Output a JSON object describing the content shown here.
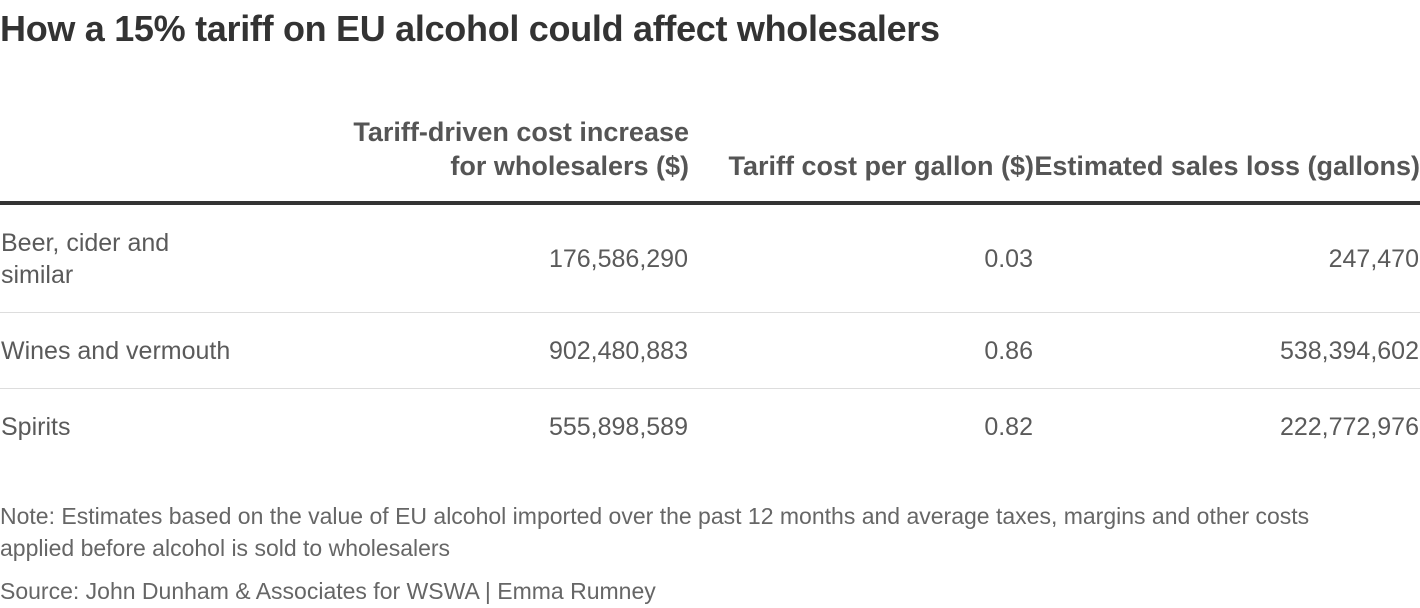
{
  "chart_data": {
    "type": "table",
    "title": "How a 15% tariff on EU alcohol could affect wholesalers",
    "columns": [
      "",
      "Tariff-driven cost increase for wholesalers ($)",
      "Tariff cost per gallon ($)",
      "Estimated sales loss (gallons)"
    ],
    "rows": [
      {
        "category": "Beer, cider and similar",
        "cost_increase": "176,586,290",
        "cost_per_gallon": "0.03",
        "sales_loss": "247,470"
      },
      {
        "category": "Wines and vermouth",
        "cost_increase": "902,480,883",
        "cost_per_gallon": "0.86",
        "sales_loss": "538,394,602"
      },
      {
        "category": "Spirits",
        "cost_increase": "555,898,589",
        "cost_per_gallon": "0.82",
        "sales_loss": "222,772,976"
      }
    ],
    "values": {
      "cost_increase": [
        176586290,
        902480883,
        555898589
      ],
      "cost_per_gallon": [
        0.03,
        0.86,
        0.82
      ],
      "sales_loss": [
        247470,
        538394602,
        222772976
      ]
    },
    "note": "Note: Estimates based on the value of EU alcohol imported over the past 12 months and average taxes, margins and other costs applied before alcohol is sold to wholesalers",
    "source": "Source: John Dunham & Associates for WSWA | Emma Rumney"
  },
  "colors": {
    "title": "#333333",
    "header_text": "#555555",
    "cell_text": "#5a5a5a",
    "header_rule": "#333333",
    "row_rule": "#dddddd",
    "footnote": "#666666"
  }
}
